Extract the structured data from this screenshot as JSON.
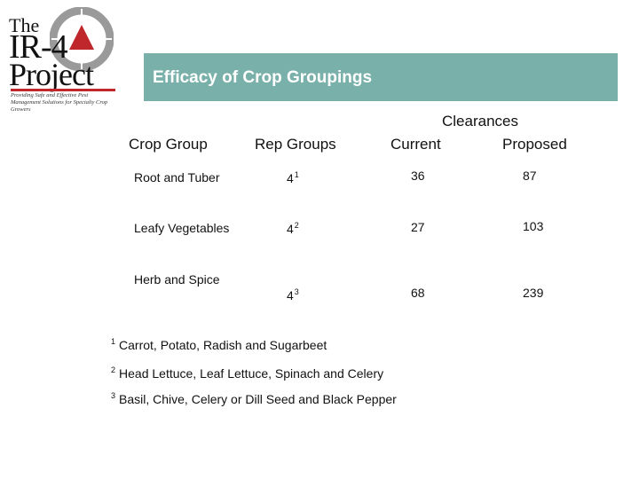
{
  "logo": {
    "line1": "The",
    "line2": "IR-4",
    "line3": "Project",
    "tagline": "Providing Safe and Effective Pest Management Solutions for Specialty Crop Growers"
  },
  "slide": {
    "title": "Efficacy of Crop Groupings"
  },
  "headers": {
    "crop_group": "Crop Group",
    "rep_groups": "Rep Groups",
    "clearances": "Clearances",
    "current": "Current",
    "proposed": "Proposed"
  },
  "rows": [
    {
      "crop_group": "Root and Tuber",
      "rep_groups": "4",
      "note": "1",
      "current": "36",
      "proposed": "87"
    },
    {
      "crop_group": "Leafy Vegetables",
      "rep_groups": "4",
      "note": "2",
      "current": "27",
      "proposed": "103"
    },
    {
      "crop_group": "Herb and Spice",
      "rep_groups": "4",
      "note": "3",
      "current": "68",
      "proposed": "239"
    }
  ],
  "footnotes": [
    {
      "mark": "1",
      "text": "Carrot, Potato, Radish and Sugarbeet"
    },
    {
      "mark": "2",
      "text": "Head Lettuce, Leaf Lettuce, Spinach and Celery"
    },
    {
      "mark": "3",
      "text": "Basil, Chive, Celery or Dill Seed and Black Pepper"
    }
  ],
  "colors": {
    "title_bar": "#79b1aa",
    "logo_accent": "#c0272d",
    "logo_ring": "#9a9a9a"
  }
}
